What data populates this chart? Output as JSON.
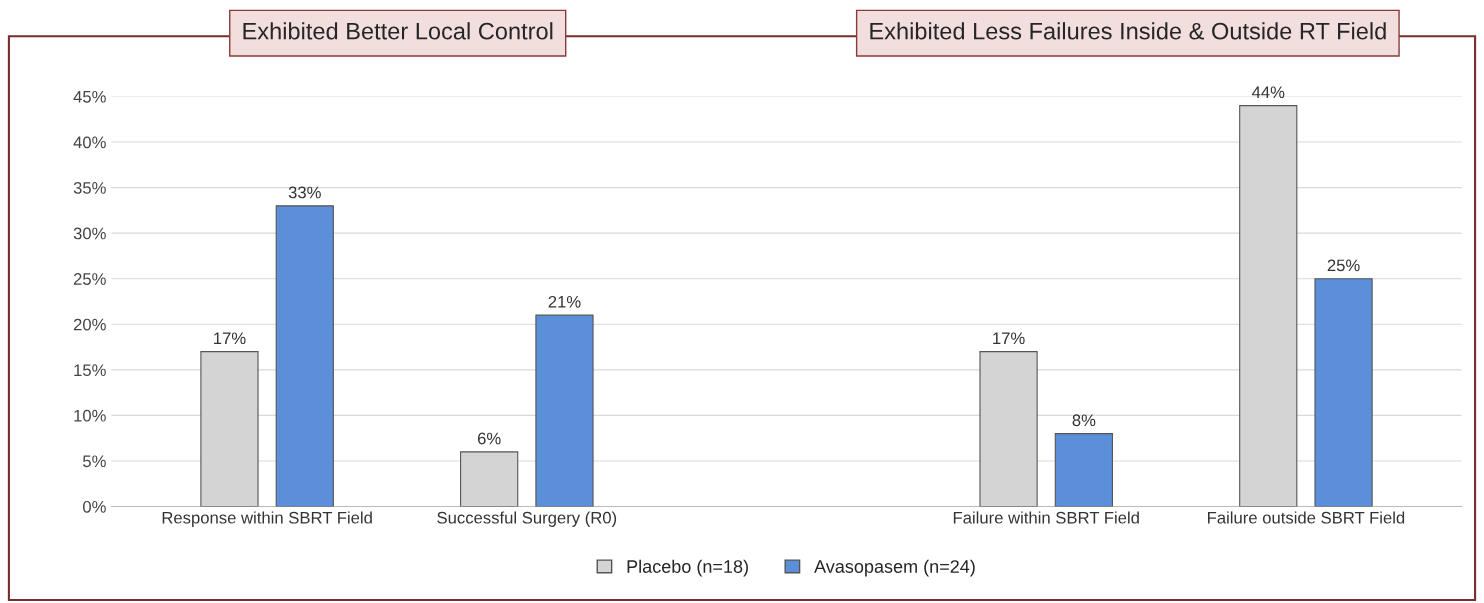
{
  "chart_data": {
    "type": "bar",
    "annotations": [
      "Exhibited Better Local Control",
      "Exhibited Less Failures Inside & Outside RT Field"
    ],
    "categories": [
      "Response within SBRT Field",
      "Successful Surgery (R0)",
      null,
      "Failure within SBRT Field",
      "Failure outside SBRT Field"
    ],
    "series": [
      {
        "name": "Placebo (n=18)",
        "color": "#d4d4d4",
        "values": [
          17,
          6,
          null,
          17,
          44
        ],
        "value_labels": [
          "17%",
          "6%",
          null,
          "17%",
          "44%"
        ]
      },
      {
        "name": "Avasopasem (n=24)",
        "color": "#5b8fd9",
        "values": [
          33,
          21,
          null,
          8,
          25
        ],
        "value_labels": [
          "33%",
          "21%",
          null,
          "8%",
          "25%"
        ]
      }
    ],
    "ylim": [
      0,
      45
    ],
    "yticks": [
      {
        "value": 0,
        "label": "0%"
      },
      {
        "value": 5,
        "label": "5%"
      },
      {
        "value": 10,
        "label": "10%"
      },
      {
        "value": 15,
        "label": "15%"
      },
      {
        "value": 20,
        "label": "20%"
      },
      {
        "value": 25,
        "label": "25%"
      },
      {
        "value": 30,
        "label": "30%"
      },
      {
        "value": 35,
        "label": "35%"
      },
      {
        "value": 40,
        "label": "40%"
      },
      {
        "value": 45,
        "label": "45%"
      }
    ],
    "grid": "y",
    "legend": "bottom"
  }
}
